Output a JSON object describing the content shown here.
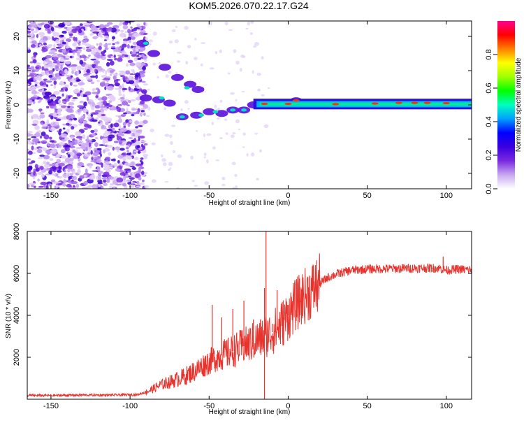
{
  "title": "KOM5.2026.070.22.17.G24",
  "chart_data": [
    {
      "type": "heatmap",
      "name": "spectrogram",
      "xlabel": "Height of straight line (km)",
      "ylabel": "Frequency (Hz)",
      "xlim": [
        -165,
        116
      ],
      "ylim": [
        -24.5,
        24.5
      ],
      "xticks": [
        -150,
        -100,
        -50,
        0,
        50,
        100
      ],
      "yticks": [
        -20,
        -10,
        0,
        10,
        20
      ],
      "ridge": [
        {
          "x": -92,
          "y": 18
        },
        {
          "x": -85,
          "y": 15
        },
        {
          "x": -78,
          "y": 11
        },
        {
          "x": -70,
          "y": 8
        },
        {
          "x": -62,
          "y": 6
        },
        {
          "x": -57,
          "y": 4.5
        },
        {
          "x": -90,
          "y": 2
        },
        {
          "x": -82,
          "y": 1.5
        },
        {
          "x": -75,
          "y": 0.5
        },
        {
          "x": -67,
          "y": -3.5
        },
        {
          "x": -58,
          "y": -3
        },
        {
          "x": -50,
          "y": -2
        },
        {
          "x": -42,
          "y": -2.5
        },
        {
          "x": -35,
          "y": -1.5
        },
        {
          "x": -28,
          "y": -1.5
        },
        {
          "x": -22,
          "y": 0
        },
        {
          "x": -10,
          "y": 0
        },
        {
          "x": 5,
          "y": 1.2
        },
        {
          "x": 20,
          "y": 0.3
        },
        {
          "x": 40,
          "y": 0
        },
        {
          "x": 60,
          "y": 0.2
        },
        {
          "x": 80,
          "y": 0.4
        },
        {
          "x": 100,
          "y": 0.3
        },
        {
          "x": 116,
          "y": 0.5
        }
      ],
      "colorbar": {
        "label": "Normalized spectral amplitude",
        "ticks": [
          "0.0",
          "0.2",
          "0.4",
          "0.6",
          "0.8"
        ],
        "tick_values": [
          0.0,
          0.2,
          0.4,
          0.6,
          0.8
        ],
        "range": [
          0,
          1
        ],
        "colors": [
          "#ffffff",
          "#c8a8f0",
          "#7a2ae0",
          "#3a00e0",
          "#0000ff",
          "#00a0ff",
          "#00ffc0",
          "#00ff00",
          "#a0ff00",
          "#ffff00",
          "#ff8000",
          "#ff0000",
          "#ff0090"
        ]
      }
    },
    {
      "type": "line",
      "name": "snr",
      "xlabel": "Height of straight line (km)",
      "ylabel": "SNR (10 * v/v)",
      "xlim": [
        -165,
        116
      ],
      "ylim": [
        0,
        8000
      ],
      "xticks": [
        -150,
        -100,
        -50,
        0,
        50,
        100
      ],
      "yticks": [
        2000,
        4000,
        6000,
        8000
      ],
      "color": "#e8322c",
      "series": [
        {
          "name": "SNR",
          "x": [
            -165,
            -150,
            -130,
            -110,
            -95,
            -88,
            -80,
            -72,
            -65,
            -58,
            -52,
            -45,
            -38,
            -32,
            -26,
            -20,
            -15,
            -12,
            -8,
            -4,
            0,
            5,
            10,
            15,
            20,
            25,
            30,
            35,
            40,
            50,
            60,
            70,
            80,
            90,
            95,
            100,
            108,
            116
          ],
          "y": [
            180,
            180,
            200,
            200,
            220,
            400,
            700,
            900,
            1100,
            1400,
            1700,
            2000,
            2200,
            2400,
            2600,
            2800,
            3000,
            3100,
            3300,
            3600,
            4000,
            4500,
            4900,
            5200,
            5500,
            5800,
            5950,
            6050,
            6150,
            6200,
            6220,
            6230,
            6250,
            6250,
            6250,
            6150,
            6200,
            6150
          ],
          "spikes": [
            {
              "x": -48,
              "y": 4500
            },
            {
              "x": -42,
              "y": 3900
            },
            {
              "x": -35,
              "y": 4300
            },
            {
              "x": -28,
              "y": 4700
            },
            {
              "x": -22,
              "y": 3800
            },
            {
              "x": -15,
              "y": 5300
            },
            {
              "x": -15,
              "y": 0
            },
            {
              "x": -14,
              "y": 8000
            },
            {
              "x": -10,
              "y": 3600
            },
            {
              "x": -7,
              "y": 5200
            },
            {
              "x": 0,
              "y": 4500
            },
            {
              "x": 7,
              "y": 5600
            },
            {
              "x": 15,
              "y": 5700
            },
            {
              "x": 98,
              "y": 6800
            }
          ]
        }
      ]
    }
  ]
}
